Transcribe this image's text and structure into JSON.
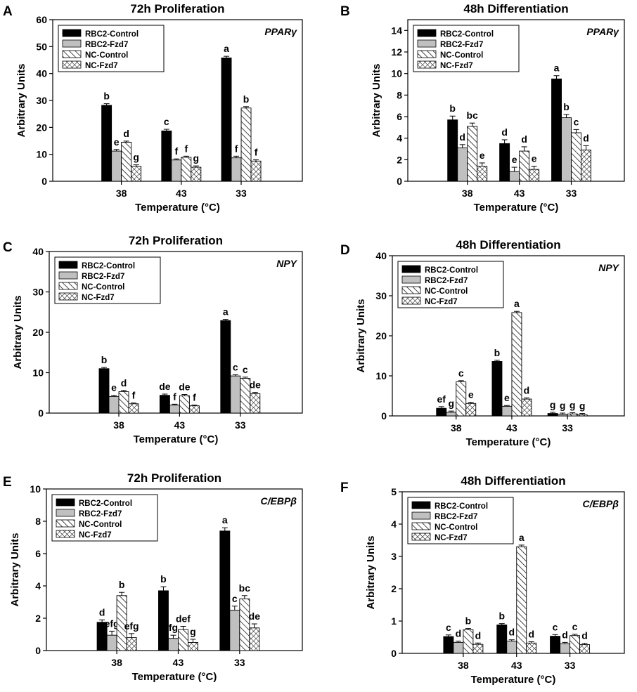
{
  "figure": {
    "legend_entries": [
      "RBC2-Control",
      "RBC2-Fzd7",
      "NC-Control",
      "NC-Fzd7"
    ],
    "colors": {
      "RBC2-Control": "#000000",
      "RBC2-Fzd7": "#c0c0c0",
      "axis": "#000000",
      "hatch": "#000000"
    }
  },
  "chart_data": [
    {
      "id": "A",
      "letter": "A",
      "type": "bar",
      "title": "72h Proliferation",
      "gene": "PPARγ",
      "xlabel": "Temperature (°C)",
      "ylabel": "Arbitrary Units",
      "categories": [
        "38",
        "43",
        "33"
      ],
      "ylim": [
        0,
        60
      ],
      "yticks": [
        0,
        10,
        20,
        30,
        40,
        50,
        60
      ],
      "series": [
        {
          "name": "RBC2-Control",
          "values": [
            28.2,
            18.7,
            45.8
          ],
          "errors": [
            0.6,
            0.6,
            0.6
          ],
          "labels": [
            "b",
            "c",
            "a"
          ]
        },
        {
          "name": "RBC2-Fzd7",
          "values": [
            11.2,
            7.9,
            8.7
          ],
          "errors": [
            0.6,
            0.4,
            0.6
          ],
          "labels": [
            "e",
            "f",
            "f"
          ]
        },
        {
          "name": "NC-Control",
          "values": [
            14.5,
            8.9,
            27.2
          ],
          "errors": [
            0.4,
            0.4,
            0.5
          ],
          "labels": [
            "d",
            "f",
            "b"
          ]
        },
        {
          "name": "NC-Fzd7",
          "values": [
            5.6,
            5.2,
            7.5
          ],
          "errors": [
            0.5,
            0.5,
            0.5
          ],
          "labels": [
            "g",
            "g",
            "f"
          ]
        }
      ]
    },
    {
      "id": "B",
      "letter": "B",
      "type": "bar",
      "title": "48h Differentiation",
      "gene": "PPARγ",
      "xlabel": "Temperature (°C)",
      "ylabel": "Arbitrary Units",
      "categories": [
        "38",
        "43",
        "33"
      ],
      "ylim": [
        0,
        15
      ],
      "yticks": [
        0,
        2,
        4,
        6,
        8,
        10,
        12,
        14
      ],
      "series": [
        {
          "name": "RBC2-Control",
          "values": [
            5.7,
            3.5,
            9.5
          ],
          "errors": [
            0.35,
            0.35,
            0.3
          ],
          "labels": [
            "b",
            "d",
            "a"
          ]
        },
        {
          "name": "RBC2-Fzd7",
          "values": [
            3.1,
            0.9,
            5.9
          ],
          "errors": [
            0.3,
            0.4,
            0.3
          ],
          "labels": [
            "d",
            "e",
            "b"
          ]
        },
        {
          "name": "NC-Control",
          "values": [
            5.1,
            2.8,
            4.5
          ],
          "errors": [
            0.3,
            0.4,
            0.3
          ],
          "labels": [
            "bc",
            "d",
            "c"
          ]
        },
        {
          "name": "NC-Fzd7",
          "values": [
            1.4,
            1.1,
            2.9
          ],
          "errors": [
            0.3,
            0.3,
            0.4
          ],
          "labels": [
            "e",
            "e",
            "d"
          ]
        }
      ]
    },
    {
      "id": "C",
      "letter": "C",
      "type": "bar",
      "title": "72h Proliferation",
      "gene": "NPY",
      "xlabel": "Temperature (°C)",
      "ylabel": "Arbitrary Units",
      "categories": [
        "38",
        "43",
        "33"
      ],
      "ylim": [
        0,
        40
      ],
      "yticks": [
        0,
        10,
        20,
        30,
        40
      ],
      "series": [
        {
          "name": "RBC2-Control",
          "values": [
            11.0,
            4.4,
            22.9
          ],
          "errors": [
            0.3,
            0.3,
            0.3
          ],
          "labels": [
            "b",
            "de",
            "a"
          ]
        },
        {
          "name": "RBC2-Fzd7",
          "values": [
            4.1,
            2.0,
            9.2
          ],
          "errors": [
            0.3,
            0.2,
            0.3
          ],
          "labels": [
            "e",
            "f",
            "c"
          ]
        },
        {
          "name": "NC-Control",
          "values": [
            5.3,
            4.3,
            8.6
          ],
          "errors": [
            0.3,
            0.3,
            0.3
          ],
          "labels": [
            "d",
            "de",
            "c"
          ]
        },
        {
          "name": "NC-Fzd7",
          "values": [
            2.3,
            1.8,
            4.8
          ],
          "errors": [
            0.2,
            0.2,
            0.3
          ],
          "labels": [
            "f",
            "f",
            "de"
          ]
        }
      ]
    },
    {
      "id": "D",
      "letter": "D",
      "type": "bar",
      "title": "48h Differentiation",
      "gene": "NPY",
      "xlabel": "Temperature (°C)",
      "ylabel": "Arbitrary Units",
      "categories": [
        "38",
        "43",
        "33"
      ],
      "ylim": [
        0,
        40
      ],
      "yticks": [
        0,
        10,
        20,
        30,
        40
      ],
      "series": [
        {
          "name": "RBC2-Control",
          "values": [
            1.9,
            13.6,
            0.6
          ],
          "errors": [
            0.4,
            0.3,
            0.3
          ],
          "labels": [
            "ef",
            "b",
            "g"
          ]
        },
        {
          "name": "RBC2-Fzd7",
          "values": [
            0.9,
            2.4,
            0.4
          ],
          "errors": [
            0.3,
            0.2,
            0.3
          ],
          "labels": [
            "g",
            "e",
            "g"
          ]
        },
        {
          "name": "NC-Control",
          "values": [
            8.5,
            25.8,
            0.5
          ],
          "errors": [
            0.3,
            0.3,
            0.3
          ],
          "labels": [
            "c",
            "a",
            "g"
          ]
        },
        {
          "name": "NC-Fzd7",
          "values": [
            3.1,
            4.2,
            0.3
          ],
          "errors": [
            0.3,
            0.3,
            0.3
          ],
          "labels": [
            "e",
            "d",
            "g"
          ]
        }
      ]
    },
    {
      "id": "E",
      "letter": "E",
      "type": "bar",
      "title": "72h Proliferation",
      "gene": "C/EBPβ",
      "xlabel": "Temperature (°C)",
      "ylabel": "Arbitrary Units",
      "categories": [
        "38",
        "43",
        "33"
      ],
      "ylim": [
        0,
        10
      ],
      "yticks": [
        0,
        2,
        4,
        6,
        8,
        10
      ],
      "series": [
        {
          "name": "RBC2-Control",
          "values": [
            1.75,
            3.7,
            7.4
          ],
          "errors": [
            0.15,
            0.25,
            0.2
          ],
          "labels": [
            "d",
            "b",
            "a"
          ]
        },
        {
          "name": "RBC2-Fzd7",
          "values": [
            0.95,
            0.75,
            2.5
          ],
          "errors": [
            0.25,
            0.2,
            0.25
          ],
          "labels": [
            "efg",
            "fg",
            "c"
          ]
        },
        {
          "name": "NC-Control",
          "values": [
            3.4,
            1.3,
            3.2
          ],
          "errors": [
            0.2,
            0.2,
            0.2
          ],
          "labels": [
            "b",
            "def",
            "bc"
          ]
        },
        {
          "name": "NC-Fzd7",
          "values": [
            0.8,
            0.5,
            1.4
          ],
          "errors": [
            0.25,
            0.2,
            0.25
          ],
          "labels": [
            "efg",
            "g",
            "de"
          ]
        }
      ]
    },
    {
      "id": "F",
      "letter": "F",
      "type": "bar",
      "title": "48h Differentiation",
      "gene": "C/EBPβ",
      "xlabel": "Temperature (°C)",
      "ylabel": "Arbitrary Units",
      "categories": [
        "38",
        "43",
        "33"
      ],
      "ylim": [
        0,
        5
      ],
      "yticks": [
        0,
        1,
        2,
        3,
        4,
        5
      ],
      "series": [
        {
          "name": "RBC2-Control",
          "values": [
            0.52,
            0.88,
            0.53
          ],
          "errors": [
            0.05,
            0.04,
            0.05
          ],
          "labels": [
            "c",
            "b",
            "c"
          ]
        },
        {
          "name": "RBC2-Fzd7",
          "values": [
            0.34,
            0.38,
            0.3
          ],
          "errors": [
            0.04,
            0.04,
            0.04
          ],
          "labels": [
            "d",
            "d",
            "d"
          ]
        },
        {
          "name": "NC-Control",
          "values": [
            0.73,
            3.3,
            0.55
          ],
          "errors": [
            0.04,
            0.05,
            0.04
          ],
          "labels": [
            "b",
            "a",
            "c"
          ]
        },
        {
          "name": "NC-Fzd7",
          "values": [
            0.28,
            0.32,
            0.27
          ],
          "errors": [
            0.04,
            0.04,
            0.04
          ],
          "labels": [
            "d",
            "d",
            "d"
          ]
        }
      ]
    }
  ]
}
